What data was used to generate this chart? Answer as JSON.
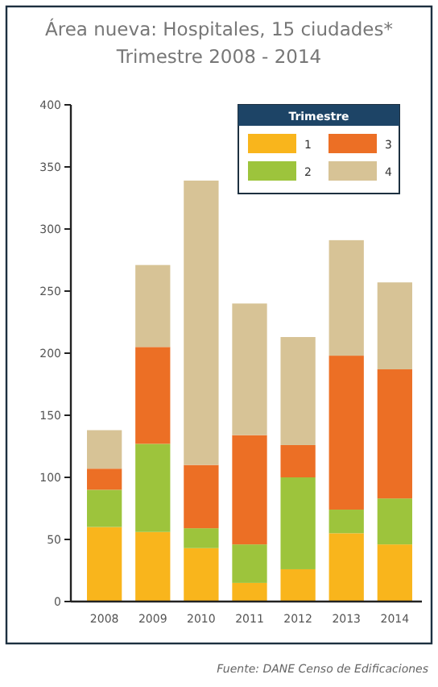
{
  "chart_data": {
    "type": "bar",
    "title": "Área nueva: Hospitales, 15 ciudades*",
    "subtitle": "Trimestre 2008 - 2014",
    "legend_title": "Trimestre",
    "annotations": [
      "Fuente: DANE Censo de Edificaciones"
    ],
    "categories": [
      "2008",
      "2009",
      "2010",
      "2011",
      "2012",
      "2013",
      "2014"
    ],
    "stacked": true,
    "ylim": [
      0,
      400
    ],
    "yticks": [
      0,
      50,
      100,
      150,
      200,
      250,
      300,
      350,
      400
    ],
    "grid": false,
    "legend": "top right",
    "series": [
      {
        "name": "1",
        "color": "#f9b51c",
        "values": [
          60,
          56,
          43,
          15,
          26,
          55,
          46
        ]
      },
      {
        "name": "2",
        "color": "#9dc43c",
        "values": [
          30,
          71,
          16,
          31,
          74,
          19,
          37
        ]
      },
      {
        "name": "3",
        "color": "#ec6f25",
        "values": [
          17,
          78,
          51,
          88,
          26,
          124,
          104
        ]
      },
      {
        "name": "4",
        "color": "#d7c396",
        "values": [
          31,
          66,
          229,
          106,
          87,
          93,
          70
        ]
      }
    ]
  }
}
